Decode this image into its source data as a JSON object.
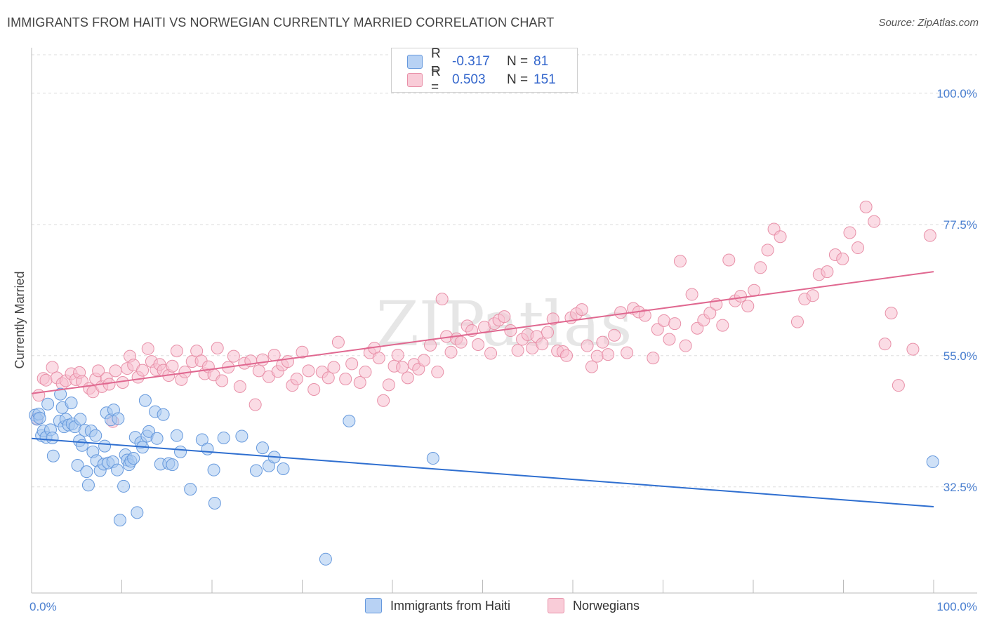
{
  "title": "IMMIGRANTS FROM HAITI VS NORWEGIAN CURRENTLY MARRIED CORRELATION CHART",
  "source": "Source: ZipAtlas.com",
  "watermark": "ZIPatlas",
  "legend": {
    "r_label": "R =",
    "n_label": "N =",
    "rows": [
      {
        "name": "Immigrants from Haiti",
        "r": "-0.317",
        "n": "81",
        "fill": "#a8c8f0",
        "stroke": "#6699dd"
      },
      {
        "name": "Norwegians",
        "r": "0.503",
        "n": "151",
        "fill": "#f8c0d0",
        "stroke": "#e890a8"
      }
    ]
  },
  "chart_data": {
    "type": "scatter",
    "title": "IMMIGRANTS FROM HAITI VS NORWEGIAN CURRENTLY MARRIED CORRELATION CHART",
    "xlabel": "",
    "ylabel": "Currently Married",
    "xlim": [
      0,
      100
    ],
    "ylim": [
      14.3,
      106.6
    ],
    "x_tick_labels": [
      "0.0%",
      "100.0%"
    ],
    "y_ticks": [
      32.5,
      55.0,
      77.5,
      100.0
    ],
    "y_tick_labels": [
      "32.5%",
      "55.0%",
      "77.5%",
      "100.0%"
    ],
    "grid": true,
    "legend_position": "top-center",
    "series": [
      {
        "name": "Immigrants from Haiti",
        "color": "#6699dd",
        "fill": "#a8c8f0",
        "line_color": "#2f6fd0",
        "trend": {
          "x": [
            0,
            100
          ],
          "y": [
            40.8,
            29.1
          ]
        },
        "points": [
          [
            0.4,
            44.8
          ],
          [
            0.6,
            44.1
          ],
          [
            0.8,
            45.0
          ],
          [
            0.9,
            44.3
          ],
          [
            1.1,
            41.3
          ],
          [
            1.3,
            42.1
          ],
          [
            1.6,
            41.0
          ],
          [
            1.8,
            46.7
          ],
          [
            2.1,
            42.3
          ],
          [
            2.3,
            40.9
          ],
          [
            2.4,
            37.8
          ],
          [
            3.1,
            43.8
          ],
          [
            3.2,
            48.4
          ],
          [
            3.4,
            46.1
          ],
          [
            3.6,
            42.8
          ],
          [
            3.8,
            44.1
          ],
          [
            4.1,
            43.1
          ],
          [
            4.4,
            46.9
          ],
          [
            4.5,
            43.3
          ],
          [
            4.8,
            42.8
          ],
          [
            5.1,
            36.2
          ],
          [
            5.3,
            40.4
          ],
          [
            5.4,
            44.1
          ],
          [
            5.6,
            39.6
          ],
          [
            5.9,
            42.2
          ],
          [
            6.1,
            35.1
          ],
          [
            6.3,
            32.8
          ],
          [
            6.6,
            42.1
          ],
          [
            6.8,
            38.5
          ],
          [
            7.1,
            41.3
          ],
          [
            7.2,
            37.0
          ],
          [
            7.6,
            35.3
          ],
          [
            8.0,
            36.4
          ],
          [
            8.1,
            39.5
          ],
          [
            8.3,
            45.2
          ],
          [
            8.5,
            36.6
          ],
          [
            8.8,
            44.0
          ],
          [
            9.0,
            36.8
          ],
          [
            9.1,
            45.7
          ],
          [
            9.5,
            35.4
          ],
          [
            9.6,
            44.2
          ],
          [
            9.8,
            26.8
          ],
          [
            10.2,
            32.6
          ],
          [
            10.4,
            38.0
          ],
          [
            10.6,
            37.1
          ],
          [
            10.8,
            36.3
          ],
          [
            11.0,
            36.9
          ],
          [
            11.3,
            37.4
          ],
          [
            11.5,
            41.0
          ],
          [
            11.7,
            28.1
          ],
          [
            12.1,
            40.1
          ],
          [
            12.3,
            39.3
          ],
          [
            12.6,
            47.3
          ],
          [
            12.8,
            41.2
          ],
          [
            13.0,
            42.0
          ],
          [
            13.7,
            45.4
          ],
          [
            13.9,
            40.8
          ],
          [
            14.3,
            36.4
          ],
          [
            14.6,
            44.9
          ],
          [
            15.2,
            36.5
          ],
          [
            15.6,
            36.3
          ],
          [
            16.1,
            41.3
          ],
          [
            16.5,
            38.5
          ],
          [
            17.6,
            32.1
          ],
          [
            18.9,
            40.6
          ],
          [
            19.5,
            39.0
          ],
          [
            20.2,
            35.4
          ],
          [
            20.3,
            29.7
          ],
          [
            21.3,
            40.9
          ],
          [
            23.3,
            41.2
          ],
          [
            24.9,
            35.3
          ],
          [
            25.6,
            39.2
          ],
          [
            26.3,
            36.1
          ],
          [
            26.9,
            37.6
          ],
          [
            27.9,
            35.6
          ],
          [
            32.6,
            20.1
          ],
          [
            35.2,
            43.8
          ],
          [
            44.5,
            37.4
          ],
          [
            99.9,
            36.8
          ]
        ]
      },
      {
        "name": "Norwegians",
        "color": "#e890a8",
        "fill": "#f8c0d0",
        "line_color": "#e06890",
        "trend": {
          "x": [
            0,
            100
          ],
          "y": [
            48.5,
            69.4
          ]
        },
        "points": [
          [
            0.6,
            44.2
          ],
          [
            0.8,
            48.2
          ],
          [
            1.3,
            51.1
          ],
          [
            1.6,
            50.8
          ],
          [
            2.3,
            53.0
          ],
          [
            2.8,
            51.2
          ],
          [
            3.4,
            50.2
          ],
          [
            3.8,
            50.7
          ],
          [
            4.4,
            51.9
          ],
          [
            4.9,
            50.9
          ],
          [
            5.3,
            52.1
          ],
          [
            5.6,
            50.6
          ],
          [
            6.4,
            49.4
          ],
          [
            6.8,
            48.8
          ],
          [
            7.1,
            51.0
          ],
          [
            7.4,
            52.4
          ],
          [
            7.8,
            49.7
          ],
          [
            8.3,
            51.1
          ],
          [
            8.6,
            50.1
          ],
          [
            9.0,
            43.7
          ],
          [
            9.3,
            52.4
          ],
          [
            10.1,
            50.4
          ],
          [
            10.6,
            52.8
          ],
          [
            10.9,
            54.9
          ],
          [
            11.3,
            53.4
          ],
          [
            11.8,
            51.3
          ],
          [
            12.3,
            52.5
          ],
          [
            12.9,
            56.2
          ],
          [
            13.3,
            54.0
          ],
          [
            13.8,
            52.6
          ],
          [
            14.2,
            53.5
          ],
          [
            14.6,
            52.5
          ],
          [
            15.2,
            51.6
          ],
          [
            15.6,
            53.2
          ],
          [
            16.1,
            55.8
          ],
          [
            16.6,
            50.9
          ],
          [
            17.0,
            52.2
          ],
          [
            17.8,
            54.0
          ],
          [
            18.3,
            55.8
          ],
          [
            18.8,
            54.1
          ],
          [
            19.2,
            51.9
          ],
          [
            19.6,
            53.1
          ],
          [
            20.2,
            51.7
          ],
          [
            20.6,
            56.3
          ],
          [
            21.1,
            50.7
          ],
          [
            21.8,
            53.0
          ],
          [
            22.4,
            54.9
          ],
          [
            23.1,
            49.7
          ],
          [
            23.6,
            53.7
          ],
          [
            24.3,
            54.1
          ],
          [
            24.8,
            46.6
          ],
          [
            25.2,
            52.4
          ],
          [
            25.6,
            54.3
          ],
          [
            26.3,
            51.4
          ],
          [
            26.9,
            55.1
          ],
          [
            27.3,
            52.3
          ],
          [
            27.8,
            53.4
          ],
          [
            28.4,
            54.0
          ],
          [
            28.9,
            49.9
          ],
          [
            29.4,
            51.0
          ],
          [
            30.0,
            55.6
          ],
          [
            30.7,
            52.4
          ],
          [
            31.3,
            49.2
          ],
          [
            32.2,
            52.2
          ],
          [
            32.9,
            51.2
          ],
          [
            33.5,
            53.0
          ],
          [
            34.0,
            57.3
          ],
          [
            34.8,
            51.0
          ],
          [
            35.5,
            53.6
          ],
          [
            36.4,
            50.4
          ],
          [
            37.0,
            52.2
          ],
          [
            37.5,
            55.5
          ],
          [
            38.0,
            56.3
          ],
          [
            38.5,
            54.6
          ],
          [
            39.0,
            47.3
          ],
          [
            39.6,
            50.0
          ],
          [
            40.2,
            53.2
          ],
          [
            40.6,
            55.1
          ],
          [
            41.1,
            53.0
          ],
          [
            41.7,
            51.2
          ],
          [
            42.4,
            53.5
          ],
          [
            42.9,
            52.7
          ],
          [
            43.5,
            54.2
          ],
          [
            44.2,
            56.8
          ],
          [
            45.0,
            52.2
          ],
          [
            45.5,
            64.7
          ],
          [
            46.0,
            58.3
          ],
          [
            46.5,
            55.6
          ],
          [
            47.1,
            57.9
          ],
          [
            47.6,
            57.3
          ],
          [
            48.3,
            60.1
          ],
          [
            48.8,
            59.3
          ],
          [
            49.5,
            56.9
          ],
          [
            50.2,
            59.9
          ],
          [
            50.9,
            55.4
          ],
          [
            51.3,
            60.5
          ],
          [
            51.8,
            61.1
          ],
          [
            52.4,
            61.7
          ],
          [
            53.1,
            59.3
          ],
          [
            53.9,
            55.9
          ],
          [
            54.4,
            57.8
          ],
          [
            55.0,
            58.6
          ],
          [
            55.5,
            56.3
          ],
          [
            56.0,
            58.3
          ],
          [
            56.6,
            57.0
          ],
          [
            57.2,
            59.0
          ],
          [
            57.8,
            61.3
          ],
          [
            58.3,
            55.8
          ],
          [
            58.9,
            55.7
          ],
          [
            59.3,
            55.0
          ],
          [
            59.8,
            61.5
          ],
          [
            60.4,
            62.2
          ],
          [
            61.0,
            62.9
          ],
          [
            61.6,
            56.7
          ],
          [
            62.1,
            53.1
          ],
          [
            62.7,
            54.9
          ],
          [
            63.3,
            57.3
          ],
          [
            63.9,
            55.2
          ],
          [
            64.6,
            58.5
          ],
          [
            65.3,
            62.4
          ],
          [
            66.0,
            55.5
          ],
          [
            66.7,
            63.1
          ],
          [
            67.3,
            62.5
          ],
          [
            68.0,
            61.9
          ],
          [
            68.9,
            54.6
          ],
          [
            69.4,
            59.5
          ],
          [
            70.1,
            61.0
          ],
          [
            70.7,
            57.8
          ],
          [
            71.3,
            60.5
          ],
          [
            71.9,
            71.2
          ],
          [
            72.5,
            56.7
          ],
          [
            73.2,
            65.5
          ],
          [
            73.8,
            59.7
          ],
          [
            74.5,
            61.1
          ],
          [
            75.2,
            62.3
          ],
          [
            75.9,
            63.8
          ],
          [
            76.6,
            60.2
          ],
          [
            77.3,
            71.4
          ],
          [
            78.0,
            64.4
          ],
          [
            78.6,
            65.2
          ],
          [
            79.4,
            63.5
          ],
          [
            80.1,
            66.2
          ],
          [
            80.8,
            70.1
          ],
          [
            81.6,
            73.1
          ],
          [
            82.3,
            76.7
          ],
          [
            83.0,
            75.4
          ],
          [
            84.9,
            60.8
          ],
          [
            85.7,
            64.7
          ],
          [
            86.6,
            65.3
          ],
          [
            87.3,
            68.9
          ],
          [
            88.2,
            69.4
          ],
          [
            89.1,
            72.3
          ],
          [
            89.9,
            71.6
          ],
          [
            90.7,
            76.1
          ],
          [
            91.6,
            73.5
          ],
          [
            92.5,
            80.5
          ],
          [
            93.4,
            78.0
          ],
          [
            94.6,
            57.0
          ],
          [
            95.3,
            62.3
          ],
          [
            96.1,
            49.9
          ],
          [
            97.7,
            56.1
          ],
          [
            99.6,
            75.6
          ]
        ]
      }
    ]
  }
}
